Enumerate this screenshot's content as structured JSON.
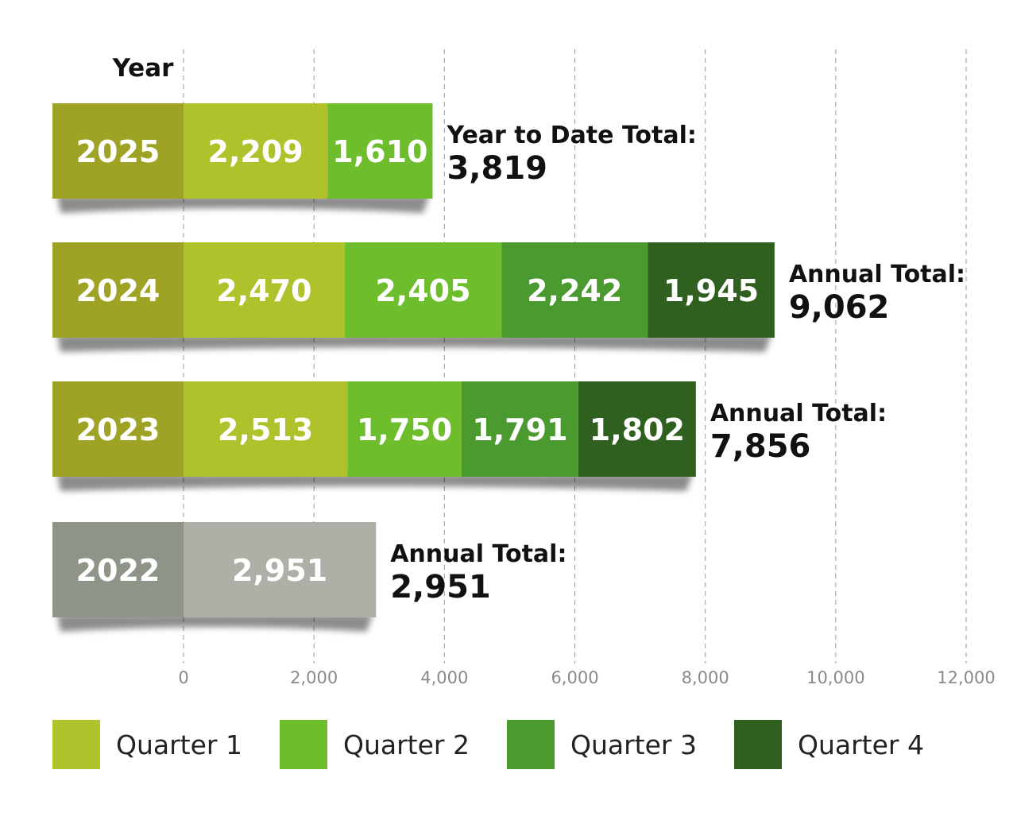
{
  "chart_data": {
    "type": "bar",
    "orientation": "horizontal",
    "stacked": true,
    "category_axis_label": "Year",
    "xlim": [
      0,
      12000
    ],
    "x_ticks": [
      0,
      2000,
      4000,
      6000,
      8000,
      10000,
      12000
    ],
    "x_tick_labels": [
      "0",
      "2,000",
      "4,000",
      "6,000",
      "8,000",
      "10,000",
      "12,000"
    ],
    "grid": "vertical dashed",
    "legend_position": "bottom",
    "quarter_colors": [
      "#afc22c",
      "#6ebd2c",
      "#4a9a30",
      "#2f601f"
    ],
    "year_box_color": "#9ea325",
    "legacy_colors": {
      "year_box": "#8f9488",
      "segment": "#aeb0a8"
    },
    "series": [
      {
        "name": "Quarter 1"
      },
      {
        "name": "Quarter 2"
      },
      {
        "name": "Quarter 3"
      },
      {
        "name": "Quarter 4"
      }
    ],
    "rows": [
      {
        "year": "2025",
        "labels": [
          "2,209",
          "1,610"
        ],
        "values": [
          2209,
          1610
        ],
        "total_label": "Year to Date Total:",
        "total": "3,819"
      },
      {
        "year": "2024",
        "labels": [
          "2,470",
          "2,405",
          "2,242",
          "1,945"
        ],
        "values": [
          2470,
          2405,
          2242,
          1945
        ],
        "total_label": "Annual Total:",
        "total": "9,062"
      },
      {
        "year": "2023",
        "labels": [
          "2,513",
          "1,750",
          "1,791",
          "1,802"
        ],
        "values": [
          2513,
          1750,
          1791,
          1802
        ],
        "total_label": "Annual Total:",
        "total": "7,856"
      },
      {
        "year": "2022",
        "labels": [
          "2,951"
        ],
        "values": [
          2951
        ],
        "total_label": "Annual Total:",
        "total": "2,951",
        "legacy": true
      }
    ]
  }
}
